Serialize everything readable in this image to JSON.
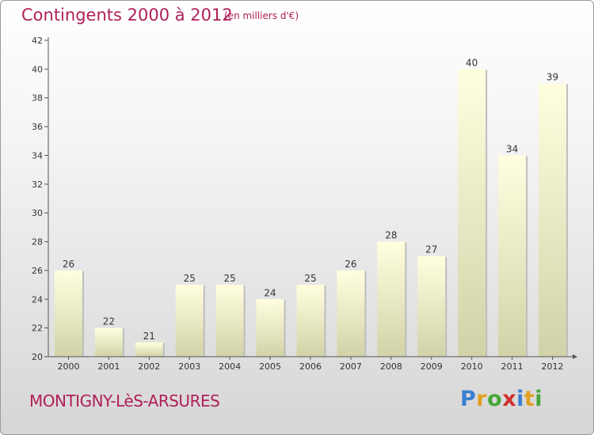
{
  "header": {
    "title": "Contingents 2000 à 2012",
    "subtitle": "(en milliers d'€)"
  },
  "footer": {
    "place": "MONTIGNY-LèS-ARSURES",
    "logo_text": "Proxiti",
    "logo_colors": [
      "#3a7fd0",
      "#e2a020",
      "#47a63a",
      "#d0302e",
      "#3a7fd0",
      "#e2a020",
      "#47a63a"
    ]
  },
  "colors": {
    "title": "#b0205a",
    "bar_top": "#ffffe0",
    "bar_bottom": "#d2d2a8",
    "axis": "#555555",
    "text": "#333333"
  },
  "chart_data": {
    "type": "bar",
    "categories": [
      "2000",
      "2001",
      "2002",
      "2003",
      "2004",
      "2005",
      "2006",
      "2007",
      "2008",
      "2009",
      "2010",
      "2011",
      "2012"
    ],
    "values": [
      26,
      22,
      21,
      25,
      25,
      24,
      25,
      26,
      28,
      27,
      40,
      34,
      39
    ],
    "title": "Contingents 2000 à 2012",
    "ylim": [
      20,
      42
    ],
    "yticks": [
      20,
      22,
      24,
      26,
      28,
      30,
      32,
      34,
      36,
      38,
      40,
      42
    ],
    "grid": false
  }
}
